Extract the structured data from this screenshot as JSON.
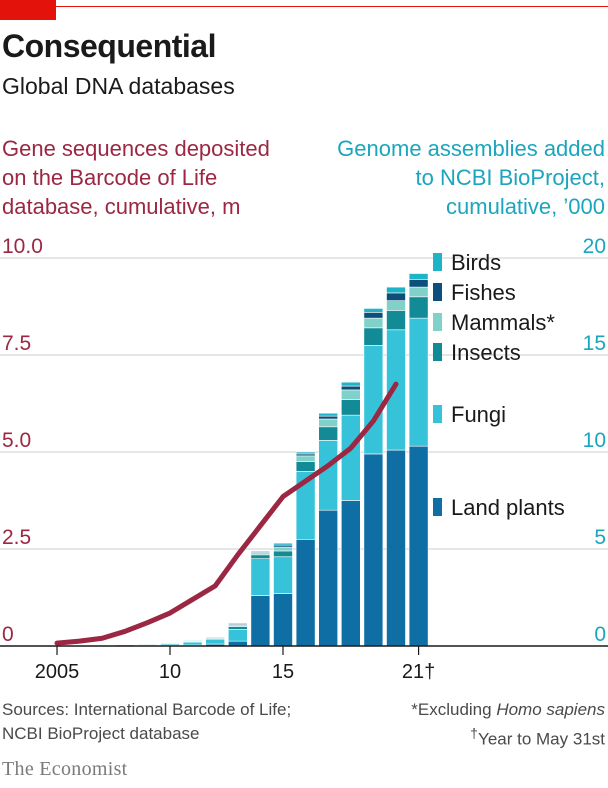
{
  "header": {
    "title": "Consequential",
    "subtitle": "Global DNA databases"
  },
  "footer": {
    "sources_line1": "Sources: International Barcode of Life;",
    "sources_line2": "NCBI BioProject database",
    "note_excluding_prefix": "*Excluding ",
    "note_excluding_species": "Homo sapiens",
    "note_year_mark": "†",
    "note_year": "Year to May 31st"
  },
  "brand": "The Economist",
  "chart_data": {
    "type": "bar",
    "left_axis_label": [
      "Gene sequences deposited",
      "on the Barcode of Life",
      "database, cumulative, m"
    ],
    "right_axis_label": [
      "Genome assemblies added",
      "to NCBI BioProject,",
      "cumulative, ’000"
    ],
    "left_ticks": [
      "10.0",
      "7.5",
      "5.0",
      "2.5",
      "0"
    ],
    "right_ticks": [
      "20",
      "15",
      "10",
      "5",
      "0"
    ],
    "x_ticks": [
      "2005",
      "10",
      "15",
      "21†"
    ],
    "left_ylim": [
      0,
      10
    ],
    "right_ylim": [
      0,
      20
    ],
    "grid": true,
    "colors": {
      "land_plants": "#0f6ea3",
      "fungi": "#36c3d9",
      "insects": "#128b96",
      "mammals": "#7fd1c9",
      "fishes": "#0c4f7a",
      "birds": "#1fb3c7",
      "line": "#9b2743",
      "axis_left": "#9b2743",
      "axis_right": "#1ba6bd"
    },
    "stack_order": [
      "land_plants",
      "fungi",
      "insects",
      "mammals",
      "fishes",
      "birds"
    ],
    "legend": [
      {
        "key": "birds",
        "label": "Birds"
      },
      {
        "key": "fishes",
        "label": "Fishes"
      },
      {
        "key": "mammals",
        "label": "Mammals*"
      },
      {
        "key": "insects",
        "label": "Insects"
      },
      {
        "key": "fungi",
        "label": "Fungi"
      },
      {
        "key": "land_plants",
        "label": "Land plants"
      }
    ],
    "bars": [
      {
        "year": 2005,
        "land_plants": 0.0,
        "fungi": 0.0,
        "insects": 0.0,
        "mammals": 0.0,
        "fishes": 0.0,
        "birds": 0.0
      },
      {
        "year": 2006,
        "land_plants": 0.0,
        "fungi": 0.01,
        "insects": 0.0,
        "mammals": 0.0,
        "fishes": 0.0,
        "birds": 0.0
      },
      {
        "year": 2007,
        "land_plants": 0.01,
        "fungi": 0.02,
        "insects": 0.0,
        "mammals": 0.0,
        "fishes": 0.0,
        "birds": 0.0
      },
      {
        "year": 2008,
        "land_plants": 0.01,
        "fungi": 0.04,
        "insects": 0.01,
        "mammals": 0.0,
        "fishes": 0.0,
        "birds": 0.0
      },
      {
        "year": 2009,
        "land_plants": 0.02,
        "fungi": 0.06,
        "insects": 0.01,
        "mammals": 0.01,
        "fishes": 0.0,
        "birds": 0.0
      },
      {
        "year": 2010,
        "land_plants": 0.03,
        "fungi": 0.09,
        "insects": 0.02,
        "mammals": 0.01,
        "fishes": 0.0,
        "birds": 0.0
      },
      {
        "year": 2011,
        "land_plants": 0.05,
        "fungi": 0.15,
        "insects": 0.04,
        "mammals": 0.02,
        "fishes": 0.01,
        "birds": 0.01
      },
      {
        "year": 2012,
        "land_plants": 0.1,
        "fungi": 0.25,
        "insects": 0.05,
        "mammals": 0.03,
        "fishes": 0.01,
        "birds": 0.01
      },
      {
        "year": 2013,
        "land_plants": 0.25,
        "fungi": 0.6,
        "insects": 0.15,
        "mammals": 0.08,
        "fishes": 0.05,
        "birds": 0.05
      },
      {
        "year": 2014,
        "land_plants": 2.6,
        "fungi": 1.9,
        "insects": 0.2,
        "mammals": 0.1,
        "fishes": 0.05,
        "birds": 0.05
      },
      {
        "year": 2015,
        "land_plants": 2.7,
        "fungi": 1.9,
        "insects": 0.3,
        "mammals": 0.2,
        "fishes": 0.1,
        "birds": 0.1
      },
      {
        "year": 2016,
        "land_plants": 5.5,
        "fungi": 3.5,
        "insects": 0.5,
        "mammals": 0.3,
        "fishes": 0.1,
        "birds": 0.1
      },
      {
        "year": 2017,
        "land_plants": 7.0,
        "fungi": 3.6,
        "insects": 0.7,
        "mammals": 0.4,
        "fishes": 0.15,
        "birds": 0.15
      },
      {
        "year": 2018,
        "land_plants": 7.5,
        "fungi": 4.4,
        "insects": 0.8,
        "mammals": 0.5,
        "fishes": 0.2,
        "birds": 0.2
      },
      {
        "year": 2019,
        "land_plants": 9.9,
        "fungi": 5.6,
        "insects": 0.9,
        "mammals": 0.5,
        "fishes": 0.3,
        "birds": 0.2
      },
      {
        "year": 2020,
        "land_plants": 10.1,
        "fungi": 6.2,
        "insects": 1.0,
        "mammals": 0.5,
        "fishes": 0.4,
        "birds": 0.3
      },
      {
        "year": 2021,
        "land_plants": 10.3,
        "fungi": 6.6,
        "insects": 1.1,
        "mammals": 0.5,
        "fishes": 0.4,
        "birds": 0.3
      }
    ],
    "line_series": {
      "name": "Gene sequences deposited on the Barcode of Life database, cumulative, m",
      "points": [
        {
          "x": 2005,
          "y": 0.15
        },
        {
          "x": 2006,
          "y": 0.25
        },
        {
          "x": 2007,
          "y": 0.4
        },
        {
          "x": 2008,
          "y": 0.75
        },
        {
          "x": 2009,
          "y": 1.2
        },
        {
          "x": 2010,
          "y": 1.7
        },
        {
          "x": 2011,
          "y": 2.4
        },
        {
          "x": 2012,
          "y": 3.1
        },
        {
          "x": 2013,
          "y": 4.7
        },
        {
          "x": 2014,
          "y": 6.2
        },
        {
          "x": 2015,
          "y": 7.7
        },
        {
          "x": 2016,
          "y": 8.5
        },
        {
          "x": 2017,
          "y": 9.3
        },
        {
          "x": 2018,
          "y": 10.2
        },
        {
          "x": 2019,
          "y": 11.6
        },
        {
          "x": 2020,
          "y": 13.5
        }
      ]
    }
  }
}
